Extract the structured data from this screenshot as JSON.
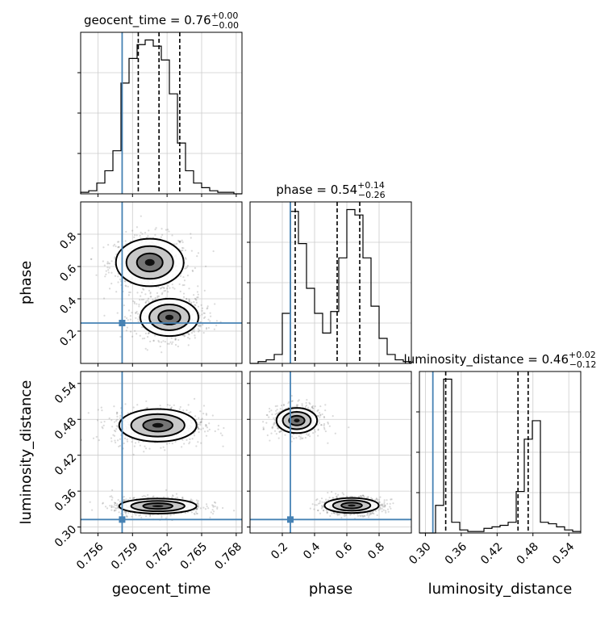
{
  "chart_data": {
    "type": "corner",
    "truth_color": "#4682b4",
    "parameters": [
      {
        "name": "geocent_time",
        "range": [
          0.7545,
          0.7685
        ],
        "ticks": [
          0.756,
          0.759,
          0.762,
          0.765,
          0.768
        ],
        "tick_labels": [
          "0.756",
          "0.759",
          "0.762",
          "0.765",
          "0.768"
        ],
        "truth": 0.7581,
        "title_main": "geocent_time = 0.76",
        "title_sup": "+0.00",
        "title_sub": "−0.00",
        "quantiles": [
          0.7595,
          0.7613,
          0.7631
        ],
        "hist_edges": [
          0.7545,
          0.7552,
          0.7559,
          0.7566,
          0.7573,
          0.758,
          0.7587,
          0.7594,
          0.7601,
          0.7608,
          0.7615,
          0.7622,
          0.7629,
          0.7636,
          0.7643,
          0.765,
          0.7657,
          0.7664,
          0.7671,
          0.7678,
          0.7685
        ],
        "hist_counts": [
          0.01,
          0.02,
          0.07,
          0.15,
          0.28,
          0.72,
          0.88,
          0.97,
          1.0,
          0.96,
          0.87,
          0.65,
          0.33,
          0.15,
          0.07,
          0.04,
          0.02,
          0.01,
          0.01,
          0.0
        ]
      },
      {
        "name": "phase",
        "range": [
          0.0,
          1.0
        ],
        "ticks": [
          0.2,
          0.4,
          0.6,
          0.8
        ],
        "tick_labels": [
          "0.2",
          "0.4",
          "0.6",
          "0.8"
        ],
        "truth": 0.25,
        "title_main": "phase = 0.54",
        "title_sup": "+0.14",
        "title_sub": "−0.26",
        "quantiles": [
          0.28,
          0.54,
          0.68
        ],
        "hist_edges": [
          0.0,
          0.05,
          0.1,
          0.15,
          0.2,
          0.25,
          0.3,
          0.35,
          0.4,
          0.45,
          0.5,
          0.55,
          0.6,
          0.65,
          0.7,
          0.75,
          0.8,
          0.85,
          0.9,
          0.95,
          1.0
        ],
        "hist_counts": [
          0.0,
          0.01,
          0.02,
          0.05,
          0.28,
          0.85,
          0.67,
          0.42,
          0.28,
          0.17,
          0.29,
          0.59,
          0.86,
          0.83,
          0.59,
          0.32,
          0.14,
          0.05,
          0.02,
          0.01
        ]
      },
      {
        "name": "luminosity_distance",
        "range": [
          0.29,
          0.56
        ],
        "ticks": [
          0.3,
          0.36,
          0.42,
          0.48,
          0.54
        ],
        "tick_labels": [
          "0.30",
          "0.36",
          "0.42",
          "0.48",
          "0.54"
        ],
        "truth": 0.3125,
        "title_main": "luminosity_distance = 0.46",
        "title_sup": "+0.02",
        "title_sub": "−0.12",
        "quantiles": [
          0.334,
          0.455,
          0.472
        ],
        "hist_edges": [
          0.29,
          0.3035,
          0.317,
          0.3305,
          0.344,
          0.3575,
          0.371,
          0.3845,
          0.398,
          0.4115,
          0.425,
          0.4385,
          0.452,
          0.4655,
          0.479,
          0.4925,
          0.506,
          0.5195,
          0.533,
          0.5465,
          0.56
        ],
        "hist_counts": [
          0.0,
          0.0,
          0.18,
          1.0,
          0.07,
          0.02,
          0.01,
          0.01,
          0.03,
          0.04,
          0.05,
          0.07,
          0.27,
          0.61,
          0.73,
          0.07,
          0.06,
          0.04,
          0.02,
          0.01
        ]
      }
    ],
    "contour_modes": {
      "geocent_time|phase": [
        {
          "center": [
            0.7605,
            0.625
          ],
          "sigma": [
            0.0014,
            0.07
          ]
        },
        {
          "center": [
            0.7622,
            0.285
          ],
          "sigma": [
            0.0012,
            0.055
          ]
        }
      ],
      "geocent_time|luminosity_distance": [
        {
          "center": [
            0.7612,
            0.47
          ],
          "sigma": [
            0.0016,
            0.013
          ]
        },
        {
          "center": [
            0.7612,
            0.335
          ],
          "sigma": [
            0.0016,
            0.006
          ]
        }
      ],
      "phase|luminosity_distance": [
        {
          "center": [
            0.29,
            0.478
          ],
          "sigma": [
            0.06,
            0.01
          ]
        },
        {
          "center": [
            0.63,
            0.336
          ],
          "sigma": [
            0.08,
            0.006
          ]
        }
      ]
    }
  }
}
